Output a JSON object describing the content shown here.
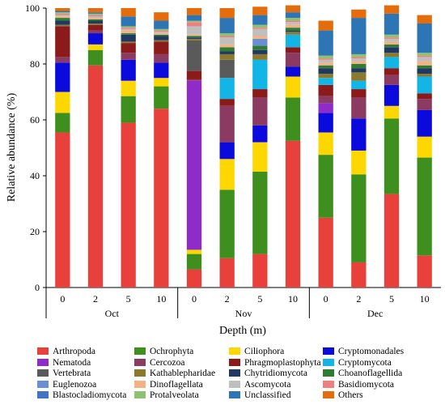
{
  "chart_data": {
    "type": "bar",
    "stacked": true,
    "ylabel": "Relative abundance (%)",
    "xlabel": "Depth (m)",
    "ylim": [
      0,
      100
    ],
    "yticks": [
      0,
      20,
      40,
      60,
      80,
      100
    ],
    "groups": [
      {
        "label": "Oct",
        "depths": [
          "0",
          "2",
          "5",
          "10"
        ]
      },
      {
        "label": "Nov",
        "depths": [
          "0",
          "2",
          "5",
          "10"
        ]
      },
      {
        "label": "Dec",
        "depths": [
          "0",
          "2",
          "5",
          "10"
        ]
      }
    ],
    "categories": [
      "0",
      "2",
      "5",
      "10",
      "0",
      "2",
      "5",
      "10",
      "0",
      "2",
      "5",
      "10"
    ],
    "series": [
      {
        "name": "Arthropoda",
        "color": "#E8413C",
        "values": [
          55.5,
          79.5,
          59,
          64,
          6.5,
          10.5,
          12,
          52.5,
          25,
          9,
          33.5,
          11.5
        ]
      },
      {
        "name": "Ochrophyta",
        "color": "#3F8F1F",
        "values": [
          7,
          5.5,
          9.5,
          8,
          5.5,
          24.5,
          29.5,
          15.5,
          22.5,
          31.5,
          27,
          35
        ]
      },
      {
        "name": "Ciliophora",
        "color": "#FFD700",
        "values": [
          7.5,
          2,
          5.5,
          3,
          1.5,
          11,
          10.5,
          7.5,
          8,
          8.5,
          4.5,
          7.5
        ]
      },
      {
        "name": "Cryptomonadales",
        "color": "#0A0ADC",
        "values": [
          10.5,
          4,
          7.5,
          5.5,
          0,
          6,
          6,
          3.5,
          7,
          11.5,
          7.5,
          9.5
        ]
      },
      {
        "name": "Nematoda",
        "color": "#8E2BC9",
        "values": [
          0,
          0,
          0,
          0,
          60.5,
          0,
          0,
          0,
          3.5,
          0,
          0,
          0
        ]
      },
      {
        "name": "Cercozoa",
        "color": "#8B3A62",
        "values": [
          2,
          1,
          2.5,
          3,
          0.5,
          13,
          10,
          5,
          2.5,
          7.5,
          3.5,
          4
        ]
      },
      {
        "name": "Phragmoplastophyta",
        "color": "#8B1A1A",
        "values": [
          11,
          2,
          3.5,
          4.5,
          3,
          2.5,
          3,
          2,
          4,
          3,
          2.5,
          2
        ]
      },
      {
        "name": "Cryptomycota",
        "color": "#12B5E5",
        "values": [
          0,
          0,
          0,
          0,
          0,
          7.5,
          10.5,
          4.5,
          2.5,
          3,
          4,
          6
        ]
      },
      {
        "name": "Vertebrata",
        "color": "#5A5A5A",
        "values": [
          0,
          0,
          0,
          0,
          11,
          6.5,
          0,
          0,
          0,
          0,
          0,
          0
        ]
      },
      {
        "name": "Kathablepharidae",
        "color": "#8B7A2E",
        "values": [
          0.5,
          0.5,
          0.5,
          0.5,
          0.5,
          2,
          2,
          1,
          1.5,
          3,
          1.5,
          1
        ]
      },
      {
        "name": "Chytridiomycota",
        "color": "#1F3864",
        "values": [
          1.5,
          1,
          2.5,
          1.5,
          0.5,
          1,
          1.5,
          0.5,
          2,
          1.5,
          2,
          2
        ]
      },
      {
        "name": "Choanoflagellida",
        "color": "#2E7D32",
        "values": [
          1,
          0.5,
          0.5,
          0.5,
          0.5,
          1.5,
          1.5,
          1,
          1,
          1.5,
          1,
          1
        ]
      },
      {
        "name": "Euglenozoa",
        "color": "#6A8FD0",
        "values": [
          0,
          0,
          0,
          0,
          0,
          0,
          2.5,
          0,
          0,
          0,
          0,
          0
        ]
      },
      {
        "name": "Dinoflagellata",
        "color": "#F4B183",
        "values": [
          0.5,
          0.5,
          1,
          0.5,
          0.5,
          1,
          1,
          1,
          1,
          1,
          1,
          1.5
        ]
      },
      {
        "name": "Ascomycota",
        "color": "#BFBFBF",
        "values": [
          0.5,
          0.5,
          0.5,
          0.5,
          3,
          2.5,
          2.5,
          1,
          1,
          1,
          1,
          1.5
        ]
      },
      {
        "name": "Basidiomycota",
        "color": "#F08080",
        "values": [
          0.5,
          0.5,
          0.5,
          0.5,
          1.5,
          0.5,
          0.5,
          0.5,
          0.5,
          0.5,
          0.5,
          0.5
        ]
      },
      {
        "name": "Blastocladiomycota",
        "color": "#4472C4",
        "values": [
          0,
          0,
          0,
          0,
          0,
          0,
          0,
          0,
          0,
          0,
          0,
          0
        ]
      },
      {
        "name": "Protalveolata",
        "color": "#8DC26F",
        "values": [
          0.5,
          0.5,
          0.5,
          0.5,
          0.5,
          1,
          1,
          1,
          1,
          1,
          1,
          1
        ]
      },
      {
        "name": "Unclassified",
        "color": "#2E75B6",
        "values": [
          0.5,
          0.5,
          3.5,
          3,
          2,
          5.5,
          3.5,
          2,
          9,
          13,
          7.5,
          10.5
        ]
      },
      {
        "name": "Others",
        "color": "#E46C0A",
        "values": [
          1,
          1.5,
          3,
          3,
          2.5,
          3.5,
          3,
          2.5,
          3.5,
          3,
          3,
          3
        ]
      }
    ],
    "legend_position": "bottom",
    "grid": false
  }
}
